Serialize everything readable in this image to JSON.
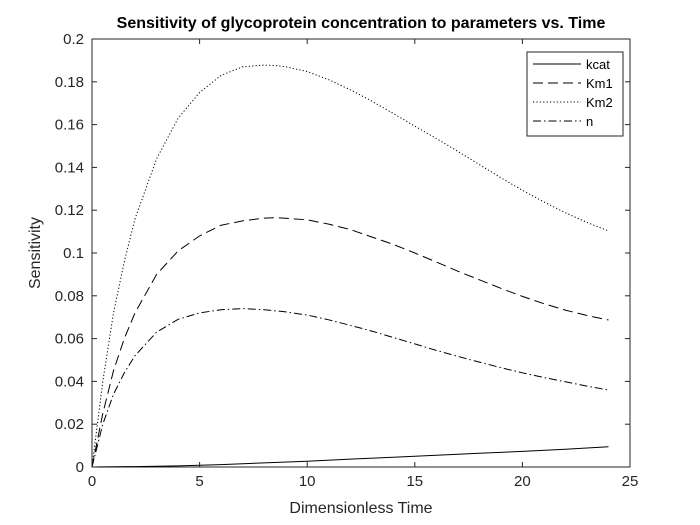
{
  "chart_data": {
    "type": "line",
    "title": "Sensitivity of glycoprotein concentration to parameters vs. Time",
    "xlabel": "Dimensionless Time",
    "ylabel": "Sensitivity",
    "xlim": [
      0,
      25
    ],
    "ylim": [
      0,
      0.2
    ],
    "xticks": [
      0,
      5,
      10,
      15,
      20,
      25
    ],
    "xtick_labels": [
      "0",
      "5",
      "10",
      "15",
      "20",
      "25"
    ],
    "yticks": [
      0,
      0.02,
      0.04,
      0.06,
      0.08,
      0.1,
      0.12,
      0.14,
      0.16,
      0.18,
      0.2
    ],
    "ytick_labels": [
      "0",
      "0.02",
      "0.04",
      "0.06",
      "0.08",
      "0.1",
      "0.12",
      "0.14",
      "0.16",
      "0.18",
      "0.2"
    ],
    "grid": false,
    "legend_position": "top-right",
    "series": [
      {
        "name": "kcat",
        "style": "solid",
        "x": [
          0,
          2,
          4,
          6,
          8,
          10,
          12,
          14,
          16,
          18,
          20,
          22,
          24
        ],
        "y": [
          0,
          0.0002,
          0.0005,
          0.0011,
          0.0019,
          0.0027,
          0.0037,
          0.0046,
          0.0055,
          0.0064,
          0.0073,
          0.0083,
          0.0095
        ]
      },
      {
        "name": "Km1",
        "style": "dashed",
        "x": [
          0,
          0.5,
          1,
          1.5,
          2,
          3,
          4,
          5,
          6,
          7,
          8,
          8.5,
          9,
          10,
          11,
          12,
          13,
          14,
          15,
          16,
          17,
          18,
          19,
          20,
          21,
          22,
          23,
          24
        ],
        "y": [
          0,
          0.025,
          0.045,
          0.06,
          0.072,
          0.09,
          0.101,
          0.108,
          0.113,
          0.115,
          0.1163,
          0.1165,
          0.1162,
          0.1155,
          0.1135,
          0.111,
          0.1075,
          0.104,
          0.1,
          0.0958,
          0.0915,
          0.0875,
          0.0835,
          0.0797,
          0.0763,
          0.0733,
          0.0708,
          0.0687
        ]
      },
      {
        "name": "Km2",
        "style": "dotted",
        "x": [
          0,
          0.5,
          1,
          1.5,
          2,
          3,
          4,
          5,
          6,
          7,
          8,
          8.5,
          9,
          10,
          11,
          12,
          13,
          14,
          15,
          16,
          17,
          18,
          19,
          20,
          21,
          22,
          23,
          24
        ],
        "y": [
          0,
          0.04,
          0.072,
          0.096,
          0.116,
          0.144,
          0.163,
          0.175,
          0.183,
          0.187,
          0.1878,
          0.1876,
          0.187,
          0.1848,
          0.181,
          0.1763,
          0.171,
          0.1652,
          0.1593,
          0.1535,
          0.1475,
          0.1413,
          0.1352,
          0.1293,
          0.1239,
          0.1188,
          0.1143,
          0.1103
        ]
      },
      {
        "name": "n",
        "style": "dashdot",
        "x": [
          0,
          0.5,
          1,
          1.5,
          2,
          3,
          4,
          5,
          6,
          7,
          8,
          9,
          10,
          11,
          12,
          13,
          14,
          15,
          16,
          17,
          18,
          19,
          20,
          21,
          22,
          23,
          24
        ],
        "y": [
          0,
          0.02,
          0.034,
          0.044,
          0.052,
          0.063,
          0.069,
          0.072,
          0.0735,
          0.074,
          0.0735,
          0.0725,
          0.071,
          0.0688,
          0.0662,
          0.0635,
          0.0605,
          0.0575,
          0.0545,
          0.0517,
          0.049,
          0.0464,
          0.044,
          0.0418,
          0.0398,
          0.0378,
          0.036
        ]
      }
    ]
  }
}
